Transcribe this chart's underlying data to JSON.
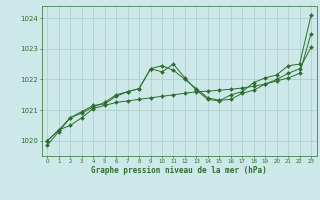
{
  "xlabel": "Graphe pression niveau de la mer (hPa)",
  "background_color": "#cce8e8",
  "grid_color": "#aacccc",
  "line_color": "#2d6e2d",
  "xlim": [
    -0.5,
    23.5
  ],
  "ylim": [
    1019.5,
    1024.4
  ],
  "yticks": [
    1020,
    1021,
    1022,
    1023,
    1024
  ],
  "xticks": [
    0,
    1,
    2,
    3,
    4,
    5,
    6,
    7,
    8,
    9,
    10,
    11,
    12,
    13,
    14,
    15,
    16,
    17,
    18,
    19,
    20,
    21,
    22,
    23
  ],
  "series": [
    [
      1020.0,
      1020.35,
      1020.5,
      1020.75,
      1021.05,
      1021.15,
      1021.25,
      1021.3,
      1021.35,
      1021.4,
      1021.45,
      1021.5,
      1021.55,
      1021.6,
      1021.62,
      1021.65,
      1021.68,
      1021.72,
      1021.78,
      1021.85,
      1021.95,
      1022.05,
      1022.2,
      1023.5
    ],
    [
      1020.0,
      1020.35,
      1020.75,
      1020.9,
      1021.1,
      1021.25,
      1021.5,
      1021.6,
      1021.7,
      1022.35,
      1022.45,
      1022.3,
      1022.0,
      1021.7,
      1021.4,
      1021.32,
      1021.35,
      1021.55,
      1021.65,
      1021.85,
      1022.0,
      1022.2,
      1022.35,
      1023.05
    ],
    [
      1019.85,
      1020.3,
      1020.75,
      1020.95,
      1021.15,
      1021.2,
      1021.45,
      1021.6,
      1021.7,
      1022.35,
      1022.25,
      1022.5,
      1022.05,
      1021.65,
      1021.35,
      1021.3,
      1021.5,
      1021.6,
      1021.9,
      1022.05,
      1022.15,
      1022.45,
      1022.5,
      1024.1
    ]
  ]
}
